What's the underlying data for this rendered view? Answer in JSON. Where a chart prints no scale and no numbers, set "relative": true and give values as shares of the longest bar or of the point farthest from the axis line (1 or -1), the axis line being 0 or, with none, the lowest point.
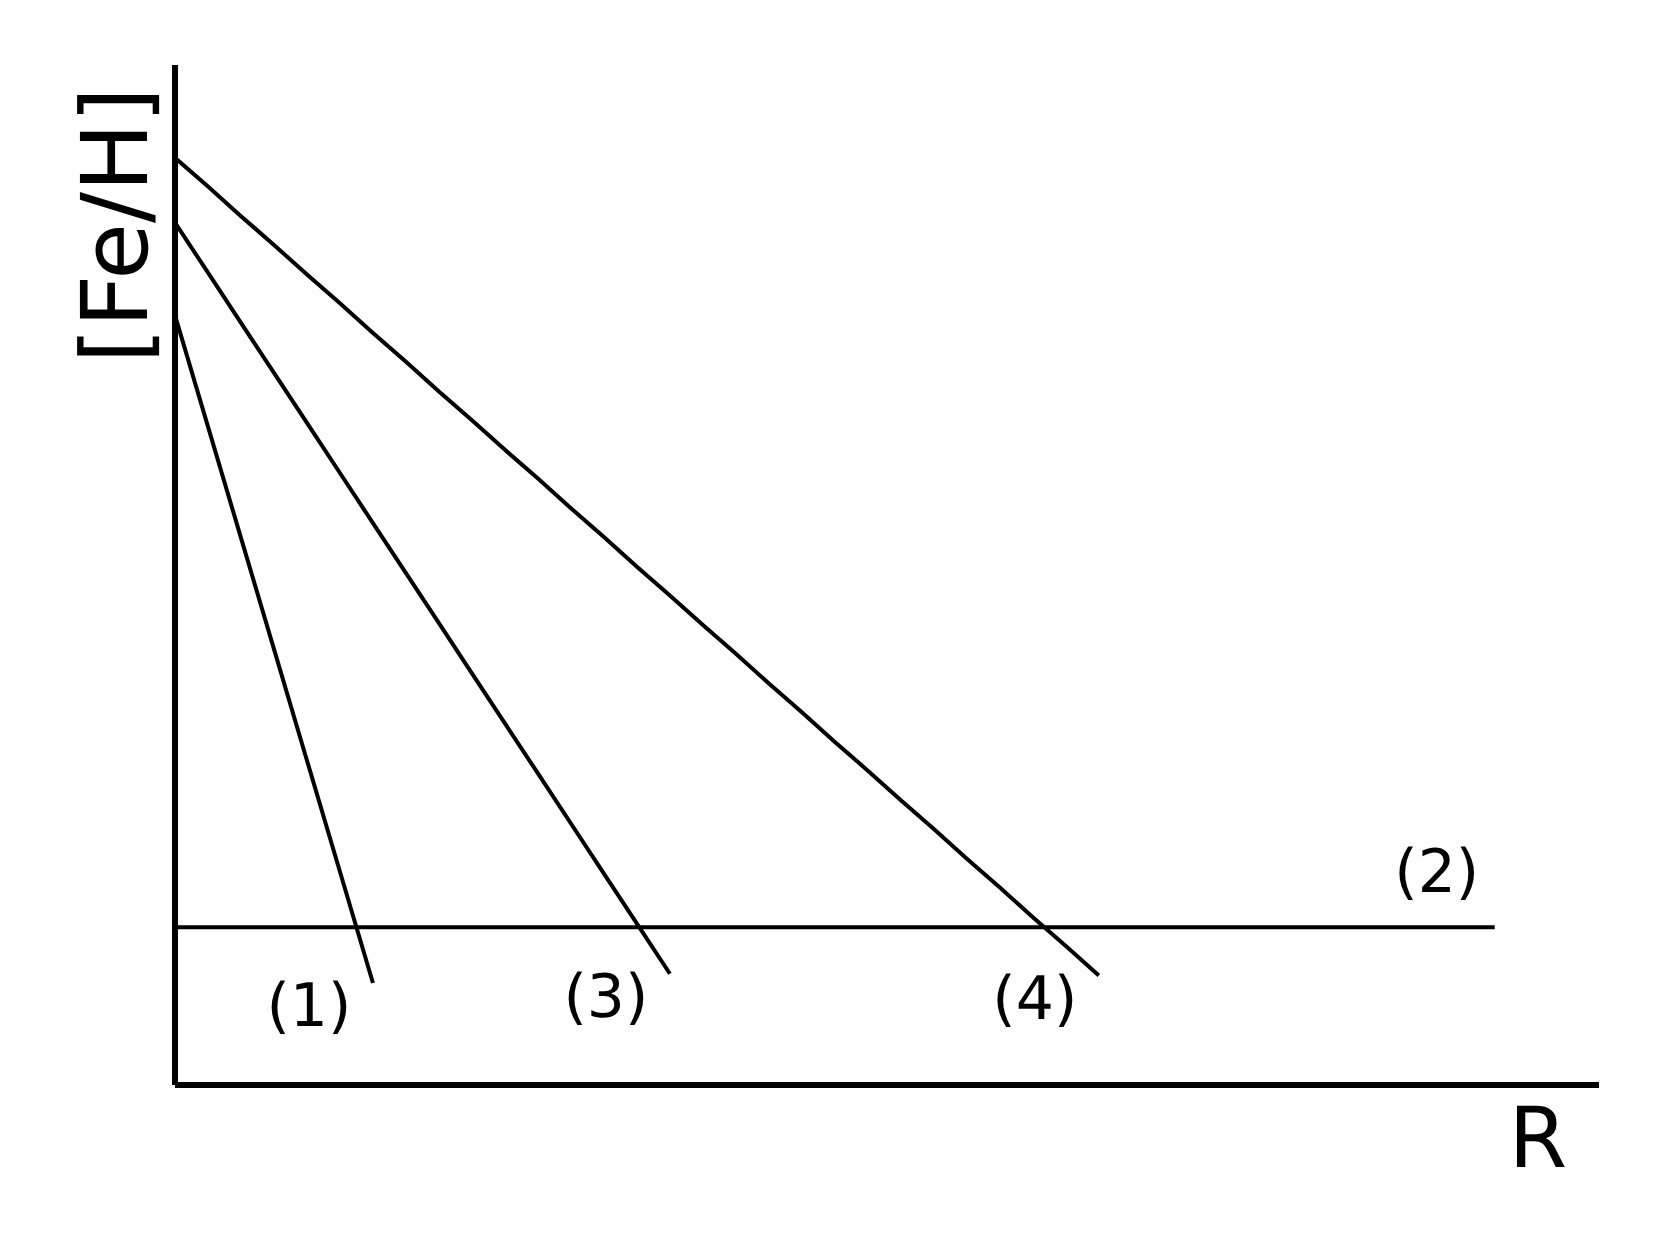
{
  "chart_data": {
    "type": "line",
    "relative": true,
    "xlabel": "R",
    "ylabel": "[Fe/H]",
    "line_style": "solid",
    "categories": [
      null,
      null,
      null,
      null,
      null,
      null,
      null,
      null,
      null,
      null,
      null,
      null,
      null,
      null,
      null,
      null,
      null,
      null,
      null,
      null,
      null,
      null,
      null,
      null,
      null,
      null,
      null,
      null,
      null,
      null,
      null,
      null,
      null,
      null,
      null,
      null,
      null,
      null,
      null,
      null,
      null
    ],
    "series": [
      {
        "name": "(1)",
        "color": "#000000",
        "values": [
          0.83,
          0.71,
          0.59,
          0.47,
          0.35,
          0.23,
          0.11,
          null,
          null,
          null,
          null,
          null,
          null,
          null,
          null,
          null,
          null,
          null,
          null,
          null,
          null,
          null,
          null,
          null,
          null,
          null,
          null,
          null,
          null,
          null,
          null,
          null,
          null,
          null,
          null,
          null,
          null,
          null,
          null,
          null,
          null
        ]
      },
      {
        "name": "(2)",
        "color": "#000000",
        "values": [
          0.17,
          0.17,
          0.17,
          0.17,
          0.17,
          0.17,
          0.17,
          0.17,
          0.17,
          0.17,
          0.17,
          0.17,
          0.17,
          0.17,
          0.17,
          0.17,
          0.17,
          0.17,
          0.17,
          0.17,
          0.17,
          0.17,
          0.17,
          0.17,
          0.17,
          0.17,
          0.17,
          0.17,
          0.17,
          0.17,
          0.17,
          0.17,
          0.17,
          0.17,
          0.17,
          0.17,
          0.17,
          0.17,
          0.17,
          0.17,
          0.17
        ]
      },
      {
        "name": "(3)",
        "color": "#000000",
        "values": [
          0.93,
          0.876,
          0.822,
          0.768,
          0.714,
          0.66,
          0.606,
          0.552,
          0.498,
          0.444,
          0.39,
          0.336,
          0.282,
          0.228,
          0.174,
          0.12,
          null,
          null,
          null,
          null,
          null,
          null,
          null,
          null,
          null,
          null,
          null,
          null,
          null,
          null,
          null,
          null,
          null,
          null,
          null,
          null,
          null,
          null,
          null,
          null,
          null
        ]
      },
      {
        "name": "(4)",
        "color": "#000000",
        "values": [
          1.0,
          0.969,
          0.937,
          0.906,
          0.874,
          0.843,
          0.811,
          0.78,
          0.748,
          0.717,
          0.685,
          0.654,
          0.622,
          0.591,
          0.559,
          0.528,
          0.496,
          0.465,
          0.433,
          0.402,
          0.37,
          0.339,
          0.307,
          0.276,
          0.244,
          0.213,
          0.181,
          0.15,
          0.118,
          null,
          null,
          null,
          null,
          null,
          null,
          null,
          null,
          null,
          null,
          null,
          null
        ]
      }
    ]
  }
}
